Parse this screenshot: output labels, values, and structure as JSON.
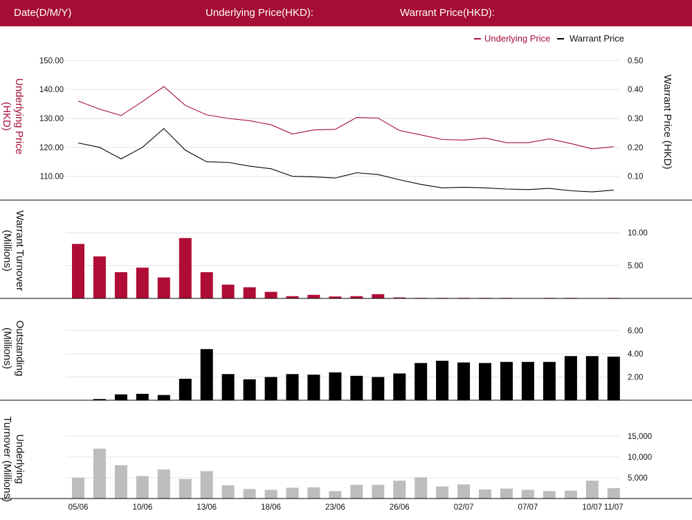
{
  "header": {
    "date_label": "Date(D/M/Y)",
    "underlying_label": "Underlying Price(HKD):",
    "warrant_label": "Warrant Price(HKD):"
  },
  "colors": {
    "brand": "#a50d34",
    "underlying_line": "#a50d34",
    "warrant_line": "#000000",
    "warrant_turnover_bar": "#b00d36",
    "outstanding_bar": "#000000",
    "underlying_turnover_bar": "#bdbdbd"
  },
  "chart_data": [
    {
      "type": "line",
      "panel": "price",
      "legend_position": "top-right",
      "grid": true,
      "y_left_label": "Underlying Price (HKD)",
      "y_right_label": "Warrant Price (HKD)",
      "y_left_ticks": [
        "110.00",
        "120.00",
        "130.00",
        "140.00",
        "150.00"
      ],
      "y_right_ticks": [
        "0.10",
        "0.20",
        "0.30",
        "0.40",
        "0.50"
      ],
      "y_left_range": [
        102,
        152
      ],
      "y_right_range": [
        0.02,
        0.52
      ],
      "series": [
        {
          "name": "Underlying Price",
          "axis": "left",
          "values": [
            136.0,
            133.2,
            131.0,
            135.8,
            141.0,
            134.5,
            131.2,
            130.0,
            129.2,
            127.8,
            124.6,
            126.0,
            126.2,
            130.3,
            130.1,
            125.8,
            124.3,
            122.7,
            122.5,
            123.2,
            121.6,
            121.6,
            122.9,
            121.3,
            119.5,
            120.2
          ]
        },
        {
          "name": "Warrant Price",
          "axis": "right",
          "values": [
            0.215,
            0.2,
            0.16,
            0.2,
            0.265,
            0.19,
            0.15,
            0.148,
            0.135,
            0.126,
            0.1,
            0.098,
            0.094,
            0.112,
            0.106,
            0.088,
            0.072,
            0.06,
            0.062,
            0.06,
            0.056,
            0.054,
            0.058,
            0.05,
            0.046,
            0.052
          ]
        }
      ]
    },
    {
      "type": "bar",
      "panel": "warrant_turnover",
      "y_label": "Warrant Turnover (Millions)",
      "y_ticks": [
        "5.00",
        "10.00"
      ],
      "y_range": [
        0,
        11.5
      ],
      "values": [
        8.3,
        6.4,
        4.0,
        4.7,
        3.2,
        9.2,
        4.0,
        2.1,
        1.7,
        1.0,
        0.35,
        0.55,
        0.3,
        0.35,
        0.65,
        0.15,
        0.08,
        0.08,
        0.06,
        0.06,
        0.06,
        0.0,
        0.04,
        0.04,
        0.0,
        0.04
      ]
    },
    {
      "type": "bar",
      "panel": "outstanding",
      "y_label": "Outstanding (Millions)",
      "y_ticks": [
        "2.00",
        "4.00",
        "6.00"
      ],
      "y_range": [
        0,
        6.5
      ],
      "values": [
        0.0,
        0.1,
        0.5,
        0.55,
        0.45,
        1.85,
        4.4,
        2.25,
        1.8,
        2.0,
        2.25,
        2.2,
        2.4,
        2.1,
        2.0,
        2.3,
        3.2,
        3.4,
        3.25,
        3.2,
        3.3,
        3.3,
        3.3,
        3.8,
        3.8,
        3.75
      ]
    },
    {
      "type": "bar",
      "panel": "underlying_turnover",
      "y_label": "Underlying Turnover (Millions)",
      "y_ticks": [
        "5,000",
        "10,000",
        "15,000"
      ],
      "y_range": [
        0,
        18500
      ],
      "x_tick_labels": [
        {
          "index": 0,
          "label": "05/06"
        },
        {
          "index": 3,
          "label": "10/06"
        },
        {
          "index": 6,
          "label": "13/06"
        },
        {
          "index": 9,
          "label": "18/06"
        },
        {
          "index": 12,
          "label": "23/06"
        },
        {
          "index": 15,
          "label": "26/06"
        },
        {
          "index": 18,
          "label": "02/07"
        },
        {
          "index": 21,
          "label": "07/07"
        },
        {
          "index": 24,
          "label": "10/07"
        },
        {
          "index": 25,
          "label": "11/07"
        }
      ],
      "values": [
        5000,
        12000,
        8000,
        5400,
        7000,
        4700,
        6600,
        3200,
        2300,
        2100,
        2600,
        2700,
        1800,
        3300,
        3300,
        4300,
        5100,
        2900,
        3400,
        2200,
        2400,
        2100,
        1800,
        1900,
        4300,
        2500
      ]
    }
  ]
}
